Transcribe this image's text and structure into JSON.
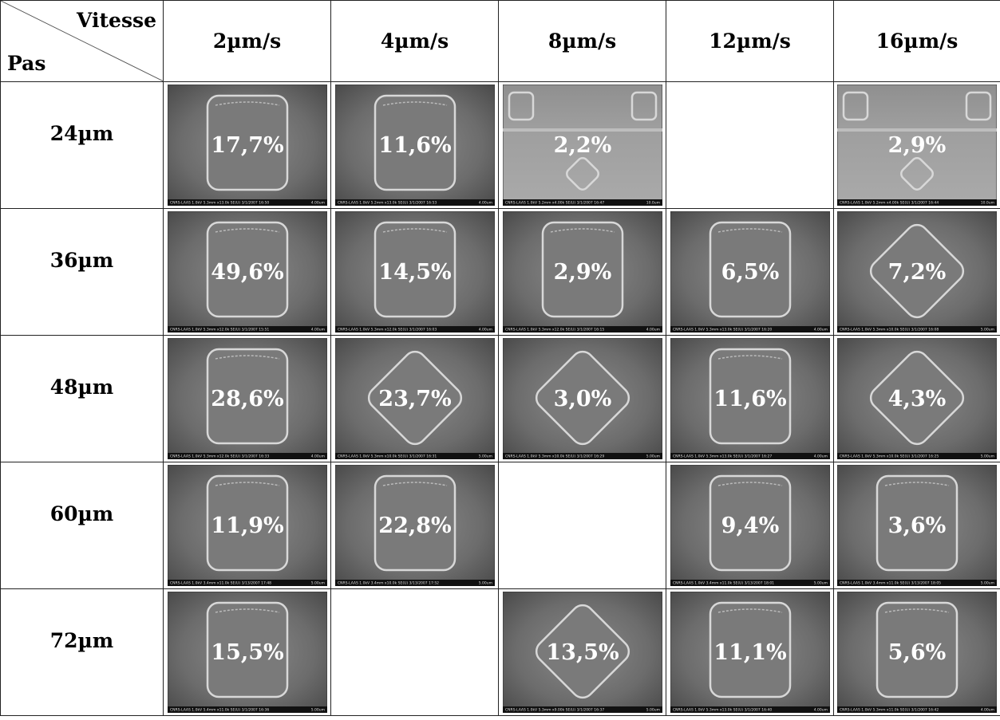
{
  "header": {
    "corner_top": "Vitesse",
    "corner_bottom": "Pas",
    "columns": [
      "2µm/s",
      "4µm/s",
      "8µm/s",
      "12µm/s",
      "16µm/s"
    ]
  },
  "table": {
    "rows": [
      {
        "label": "24µm",
        "cells": [
          {
            "value": "17,7%",
            "caption": "CNRS-LAAS 1.0kV 5.3mm x13.0k SE(U) 3/1/2007 16:50",
            "scale": "4.00um"
          },
          {
            "value": "11,6%",
            "caption": "CNRS-LAAS 1.0kV 5.2mm x13.0k SE(U) 3/1/2007 16:53",
            "scale": "4.00um"
          },
          {
            "value": "2,2%",
            "caption": "CNRS-LAAS 1.0kV 5.2mm x4.00k SE(U) 3/1/2007 16:47",
            "scale": "10.0um"
          },
          null,
          {
            "value": "2,9%",
            "caption": "CNRS-LAAS 1.0kV 5.2mm x4.00k SE(U) 3/1/2007 16:44",
            "scale": "10.0um"
          }
        ]
      },
      {
        "label": "36µm",
        "cells": [
          {
            "value": "49,6%",
            "caption": "CNRS-LAAS 1.0kV 5.3mm x12.0k SE(U) 3/1/2007 15:51",
            "scale": "4.00um"
          },
          {
            "value": "14,5%",
            "caption": "CNRS-LAAS 1.0kV 5.3mm x12.0k SE(U) 3/1/2007 16:03",
            "scale": "4.00um"
          },
          {
            "value": "2,9%",
            "caption": "CNRS-LAAS 1.0kV 5.3mm x12.0k SE(U) 3/1/2007 16:15",
            "scale": "4.00um"
          },
          {
            "value": "6,5%",
            "caption": "CNRS-LAAS 1.0kV 5.3mm x13.0k SE(U) 3/1/2007 16:20",
            "scale": "4.00um"
          },
          {
            "value": "7,2%",
            "caption": "CNRS-LAAS 1.0kV 5.3mm x10.0k SE(U) 3/1/2007 16:08",
            "scale": "5.00um"
          }
        ]
      },
      {
        "label": "48µm",
        "cells": [
          {
            "value": "28,6%",
            "caption": "CNRS-LAAS 1.0kV 5.3mm x12.0k SE(U) 3/1/2007 16:33",
            "scale": "4.00um"
          },
          {
            "value": "23,7%",
            "caption": "CNRS-LAAS 1.0kV 5.3mm x10.0k SE(U) 3/1/2007 16:31",
            "scale": "5.00um"
          },
          {
            "value": "3,0%",
            "caption": "CNRS-LAAS 1.0kV 5.3mm x10.0k SE(U) 3/1/2007 16:29",
            "scale": "5.00um"
          },
          {
            "value": "11,6%",
            "caption": "CNRS-LAAS 1.0kV 5.3mm x13.0k SE(U) 3/1/2007 16:27",
            "scale": "4.00um"
          },
          {
            "value": "4,3%",
            "caption": "CNRS-LAAS 1.0kV 5.3mm x10.0k SE(U) 3/1/2007 16:25",
            "scale": "5.00um"
          }
        ]
      },
      {
        "label": "60µm",
        "cells": [
          {
            "value": "11,9%",
            "caption": "CNRS-LAAS 1.0kV 3.4mm x11.0k SE(U) 3/13/2007 17:48",
            "scale": "5.00um"
          },
          {
            "value": "22,8%",
            "caption": "CNRS-LAAS 1.0kV 3.4mm x10.0k SE(U) 3/13/2007 17:52",
            "scale": "5.00um"
          },
          null,
          {
            "value": "9,4%",
            "caption": "CNRS-LAAS 1.0kV 3.4mm x11.0k SE(U) 3/13/2007 18:01",
            "scale": "5.00um"
          },
          {
            "value": "3,6%",
            "caption": "CNRS-LAAS 1.0kV 3.4mm x11.0k SE(U) 3/13/2007 18:05",
            "scale": "5.00um"
          }
        ]
      },
      {
        "label": "72µm",
        "cells": [
          {
            "value": "15,5%",
            "caption": "CNRS-LAAS 1.0kV 5.4mm x11.0k SE(U) 3/1/2007 16:36",
            "scale": "5.00um"
          },
          null,
          {
            "value": "13,5%",
            "caption": "CNRS-LAAS 1.0kV 5.3mm x9.00k SE(U) 3/1/2007 16:37",
            "scale": "5.00um"
          },
          {
            "value": "11,1%",
            "caption": "CNRS-LAAS 1.0kV 5.3mm x13.0k SE(U) 3/1/2007 16:40",
            "scale": "4.00um"
          },
          {
            "value": "5,6%",
            "caption": "CNRS-LAAS 1.0kV 5.3mm x11.0k SE(U) 3/1/2007 16:42",
            "scale": "4.00um"
          }
        ]
      }
    ]
  }
}
